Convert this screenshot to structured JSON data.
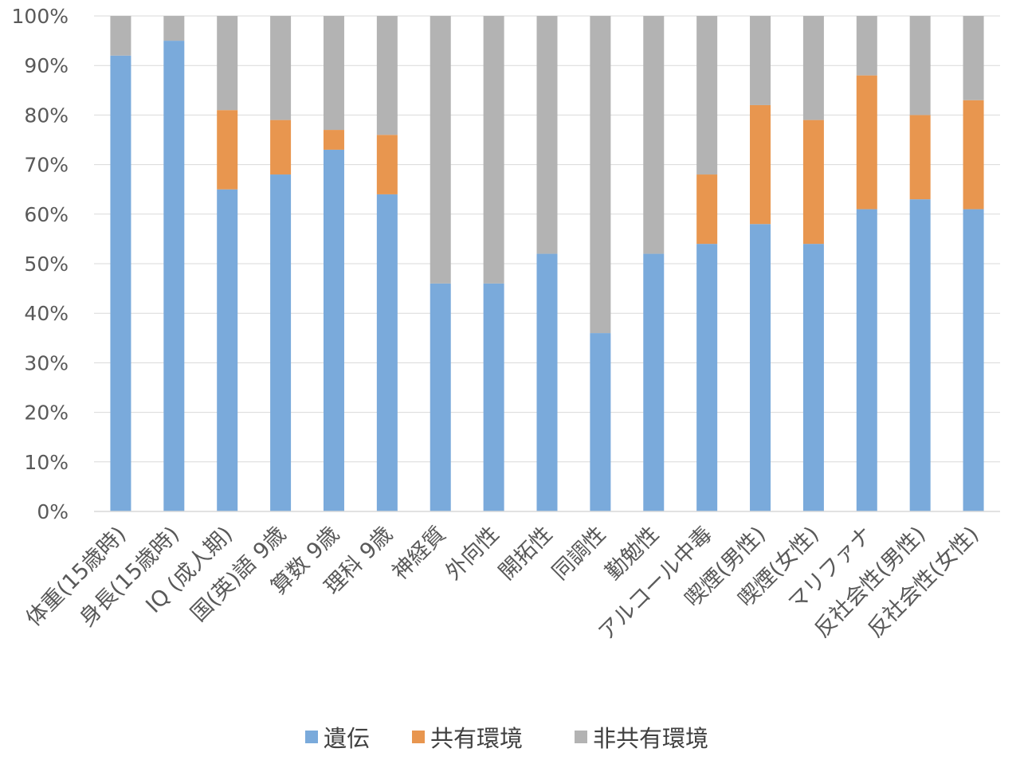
{
  "chart_data": {
    "type": "bar",
    "stacked": "percent",
    "categories": [
      "体重(15歳時)",
      "身長(15歳時)",
      "IQ (成人期)",
      "国(英)語 9歳",
      "算数 9歳",
      "理科 9歳",
      "神経質",
      "外向性",
      "開拓性",
      "同調性",
      "勤勉性",
      "アルコール中毒",
      "喫煙(男性)",
      "喫煙(女性)",
      "マリファナ",
      "反社会性(男性)",
      "反社会性(女性)"
    ],
    "series": [
      {
        "name": "遺伝",
        "color": "#7aaadb",
        "values": [
          92,
          95,
          65,
          68,
          73,
          64,
          46,
          46,
          52,
          36,
          52,
          54,
          58,
          54,
          61,
          63,
          61
        ]
      },
      {
        "name": "共有環境",
        "color": "#e8964f",
        "values": [
          0,
          0,
          16,
          11,
          4,
          12,
          0,
          0,
          0,
          0,
          0,
          14,
          24,
          25,
          27,
          17,
          22
        ]
      },
      {
        "name": "非共有環境",
        "color": "#b3b3b3",
        "values": [
          8,
          5,
          19,
          21,
          23,
          24,
          54,
          54,
          48,
          64,
          48,
          32,
          18,
          21,
          12,
          20,
          17
        ]
      }
    ],
    "y_ticks": [
      "0%",
      "10%",
      "20%",
      "30%",
      "40%",
      "50%",
      "60%",
      "70%",
      "80%",
      "90%",
      "100%"
    ],
    "ylim": [
      0,
      100
    ],
    "grid": true,
    "legend_position": "bottom"
  }
}
